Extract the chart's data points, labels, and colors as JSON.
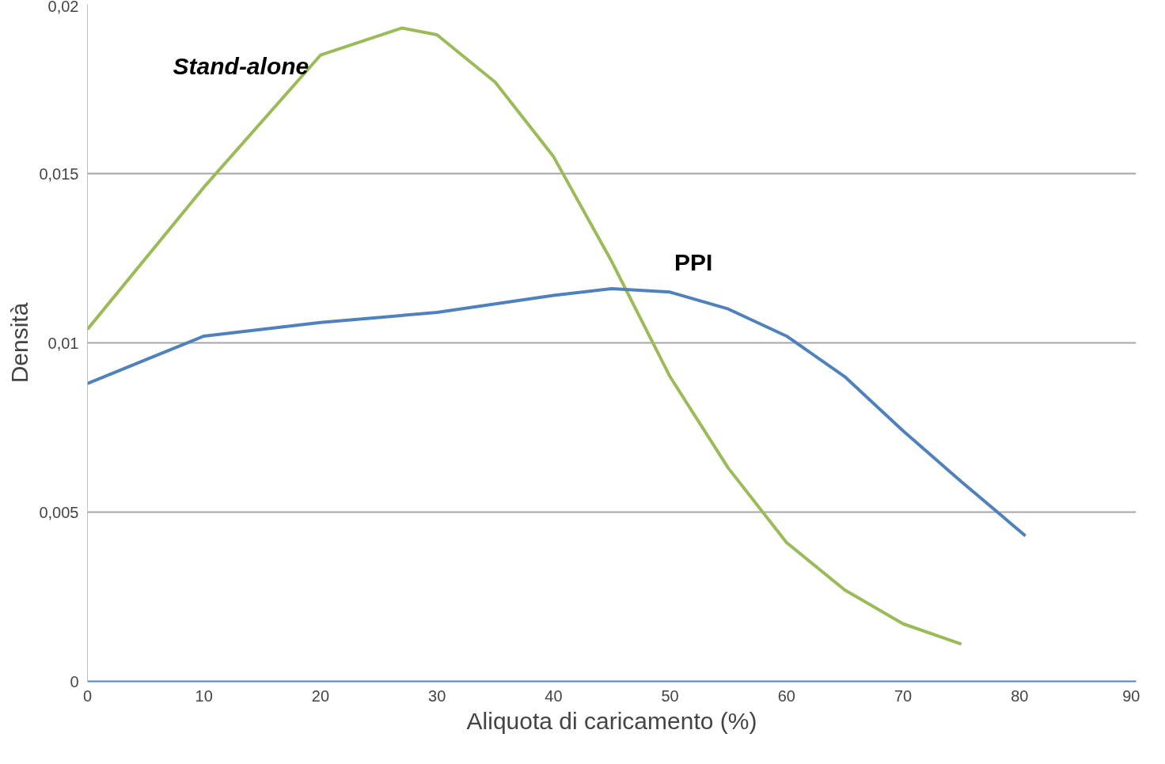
{
  "chart_data": {
    "type": "line",
    "xlabel": "Aliquota di caricamento (%)",
    "ylabel": "Densità",
    "xlim": [
      0,
      90
    ],
    "xticks": [
      0,
      10,
      20,
      30,
      40,
      50,
      60,
      70,
      80,
      90
    ],
    "ylim": [
      0,
      0.02
    ],
    "yticks": [
      {
        "value": 0,
        "label": "0"
      },
      {
        "value": 0.005,
        "label": "0,005"
      },
      {
        "value": 0.01,
        "label": "0,01"
      },
      {
        "value": 0.015,
        "label": "0,015"
      },
      {
        "value": 0.02,
        "label": "0,02"
      }
    ],
    "grid": "y",
    "marker": "none",
    "line_style": "solid",
    "series": [
      {
        "name": "Stand-alone",
        "color": "#9bbb59",
        "x": [
          0,
          10,
          20,
          27,
          30,
          35,
          40,
          45,
          50,
          55,
          60,
          65,
          70,
          75
        ],
        "values": [
          0.0104,
          0.0146,
          0.0185,
          0.0193,
          0.0191,
          0.0177,
          0.0155,
          0.0124,
          0.009,
          0.0063,
          0.0041,
          0.0027,
          0.0017,
          0.0011
        ]
      },
      {
        "name": "PPI",
        "color": "#4f81bd",
        "x": [
          0,
          5,
          10,
          20,
          30,
          40,
          45,
          50,
          55,
          60,
          65,
          70,
          75,
          80.5
        ],
        "values": [
          0.0088,
          0.0095,
          0.0102,
          0.0106,
          0.0109,
          0.0114,
          0.0116,
          0.0115,
          0.011,
          0.0102,
          0.009,
          0.0074,
          0.0059,
          0.0043
        ]
      }
    ]
  }
}
